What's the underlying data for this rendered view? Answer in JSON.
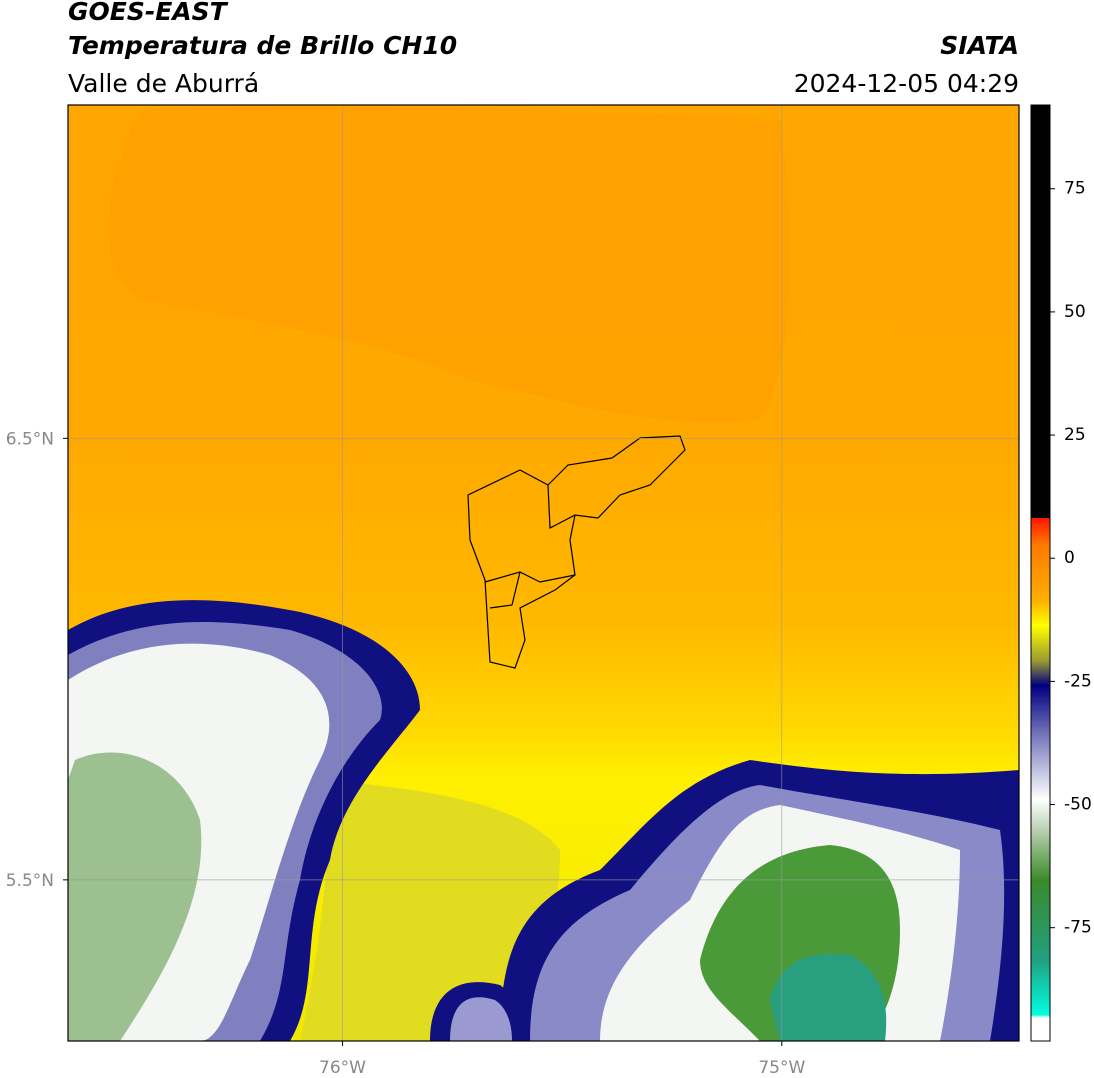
{
  "header": {
    "title": "GOES-EAST",
    "subtitle": "Temperatura de Brillo CH10",
    "region": "Valle de Aburrá",
    "source": "SIATA",
    "datetime": "2024-12-05 04:29"
  },
  "map": {
    "xlim": [
      -76.625,
      -74.46
    ],
    "ylim": [
      5.135,
      7.255
    ],
    "xticks": [
      {
        "value": -76,
        "label": "76°W"
      },
      {
        "value": -75,
        "label": "75°W"
      }
    ],
    "yticks": [
      {
        "value": 6.5,
        "label": "6.5°N"
      },
      {
        "value": 5.5,
        "label": "5.5°N"
      }
    ],
    "grid": true
  },
  "colorbar": {
    "lim": [
      -98,
      92
    ],
    "ticks": [
      75,
      50,
      25,
      0,
      -25,
      -50,
      -75
    ]
  }
}
